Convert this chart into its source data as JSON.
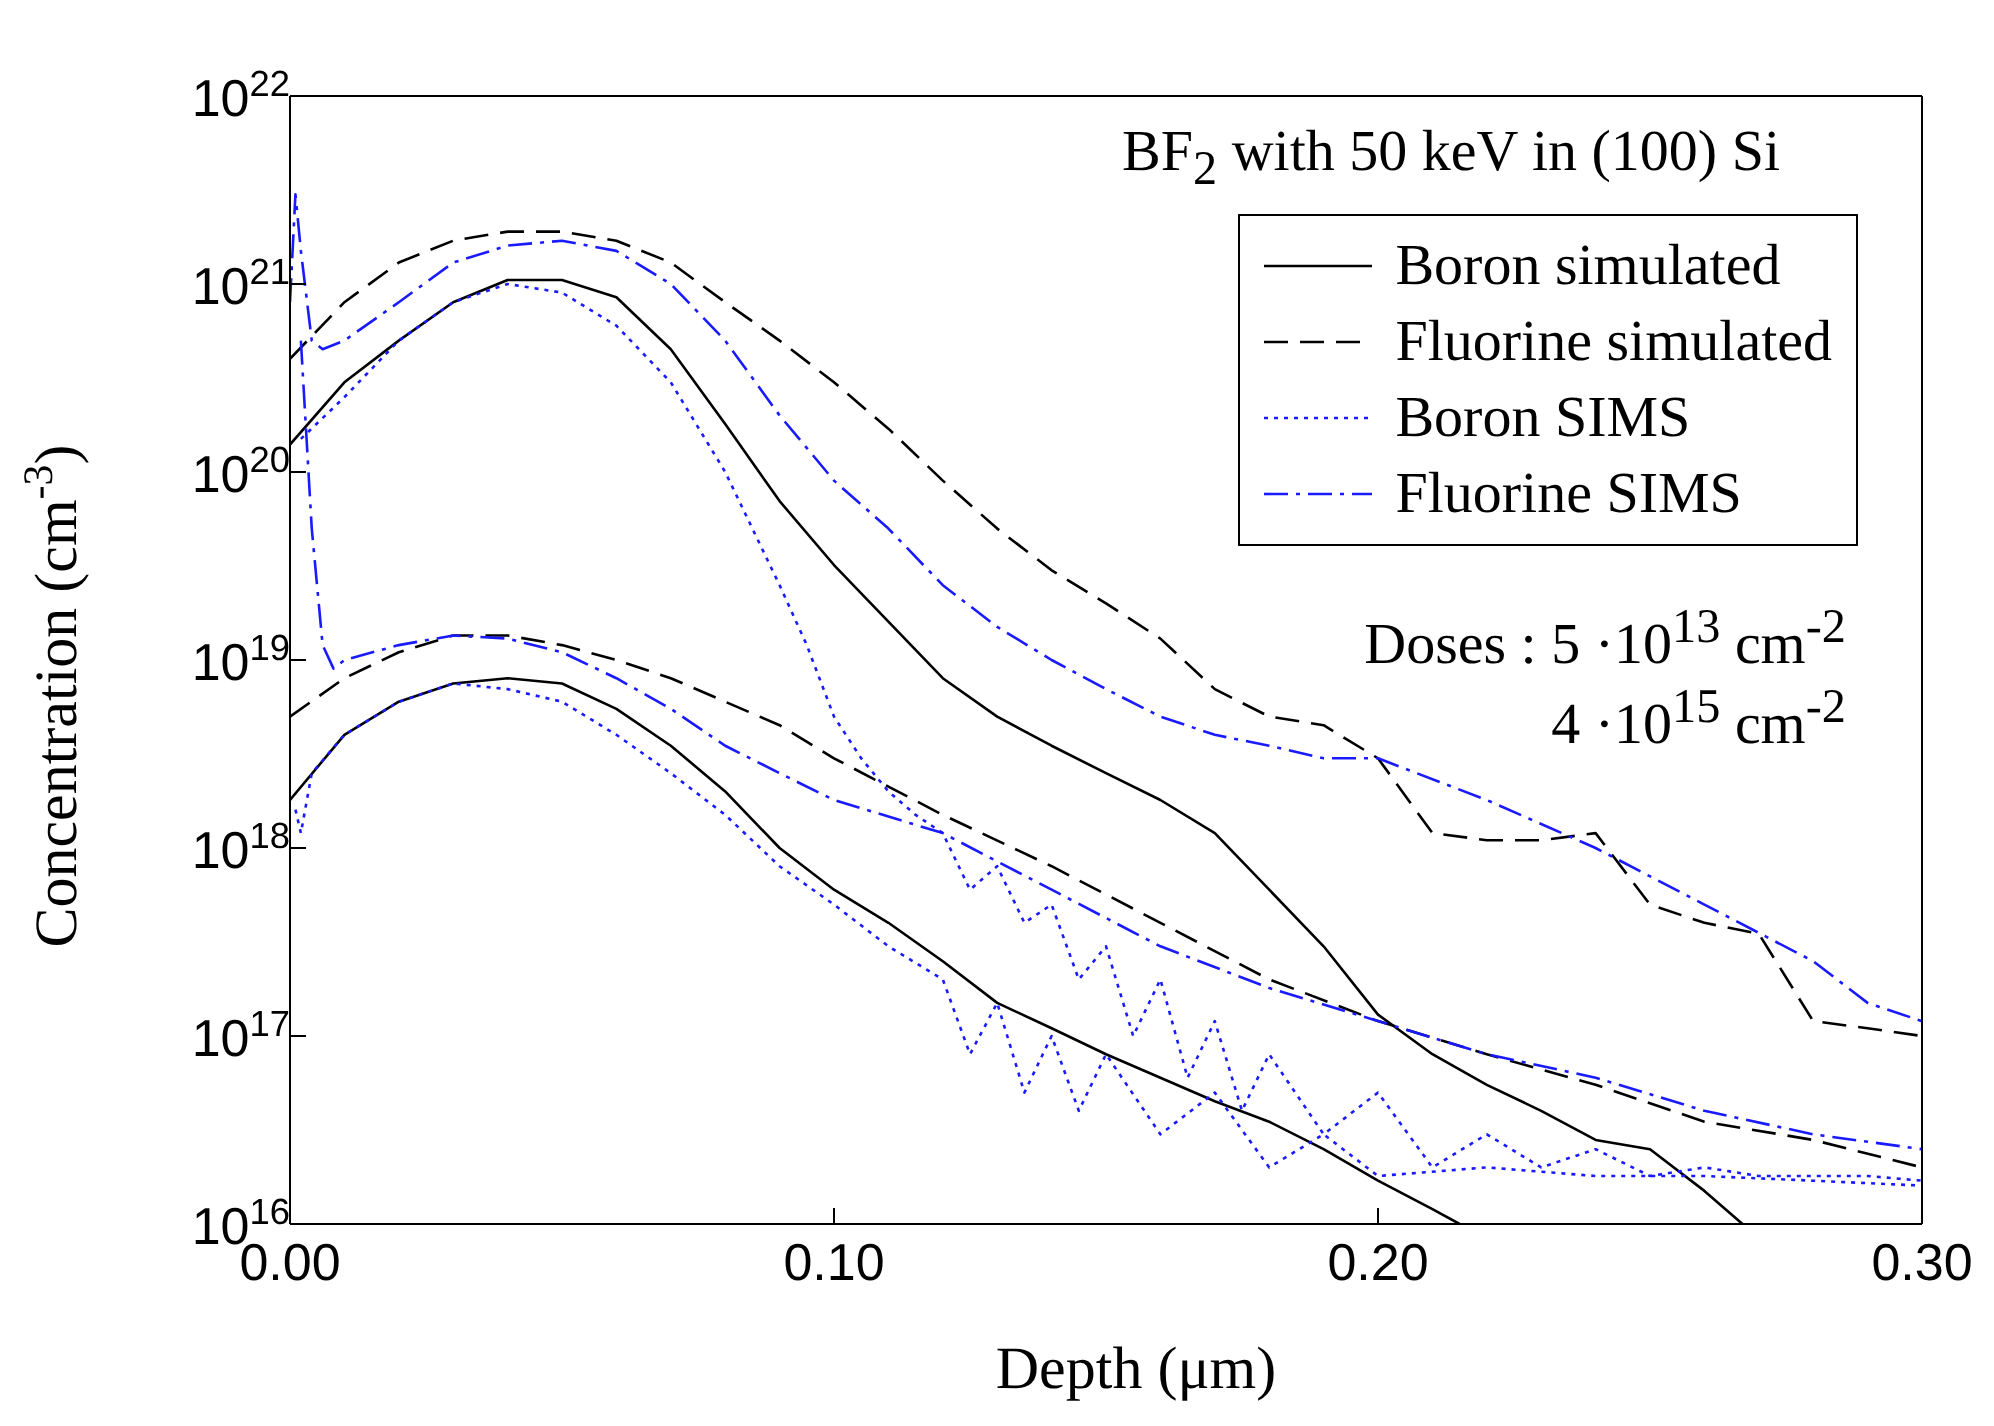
{
  "chart_data": {
    "type": "line",
    "xlabel": "Depth (μm)",
    "ylabel": "Concentration (cm$^{-3}$)",
    "annotations": [
      "BF$_{2}$ with 50 keV in (100) Si",
      "Doses : 5 ·10$^{13}$ cm$^{-2}$",
      "4 ·10$^{15}$ cm$^{-2}$"
    ],
    "log": "y",
    "xlim": [
      0,
      0.3
    ],
    "ylim": [
      1e+16,
      1e+22
    ],
    "xticks": [
      {
        "value": 0,
        "label": "0.00"
      },
      {
        "value": 0.1,
        "label": "0.10"
      },
      {
        "value": 0.2,
        "label": "0.20"
      },
      {
        "value": 0.3,
        "label": "0.30"
      }
    ],
    "yticks": [
      {
        "value": 1e+16,
        "label": "10$^{16}$"
      },
      {
        "value": 1e+17,
        "label": "10$^{17}$"
      },
      {
        "value": 1e+18,
        "label": "10$^{18}$"
      },
      {
        "value": 1e+19,
        "label": "10$^{19}$"
      },
      {
        "value": 1e+20,
        "label": "10$^{20}$"
      },
      {
        "value": 1e+21,
        "label": "10$^{21}$"
      },
      {
        "value": 1e+22,
        "label": "10$^{22}$"
      }
    ],
    "legend": "top right",
    "marker": "none",
    "series": [
      {
        "name": "Boron simulated",
        "color": "#000000",
        "line_style": "solid",
        "x": [
          0,
          0.01,
          0.02,
          0.03,
          0.04,
          0.05,
          0.06,
          0.07,
          0.08,
          0.09,
          0.1,
          0.11,
          0.12,
          0.13,
          0.14,
          0.15,
          0.16,
          0.17,
          0.18,
          0.19,
          0.2,
          0.21,
          0.22,
          0.23,
          0.24,
          0.25,
          0.26,
          0.267
        ],
        "values": [
          1.4e+20,
          3e+20,
          5e+20,
          8e+20,
          1.05e+21,
          1.05e+21,
          8.5e+20,
          4.5e+20,
          1.8e+20,
          7e+19,
          3.2e+19,
          1.6e+19,
          8e+18,
          5e+18,
          3.5e+18,
          2.5e+18,
          1.8e+18,
          1.2e+18,
          6e+17,
          3e+17,
          1.3e+17,
          8e+16,
          5.5e+16,
          4e+16,
          2.8e+16,
          2.5e+16,
          1.5e+16,
          1e+16
        ]
      },
      {
        "name": "Fluorine simulated",
        "color": "#000000",
        "line_style": "dashed",
        "x": [
          0,
          0.01,
          0.02,
          0.03,
          0.04,
          0.05,
          0.06,
          0.07,
          0.08,
          0.09,
          0.1,
          0.11,
          0.12,
          0.13,
          0.14,
          0.15,
          0.16,
          0.17,
          0.18,
          0.19,
          0.2,
          0.21,
          0.22,
          0.23,
          0.24,
          0.25,
          0.26,
          0.27,
          0.28,
          0.29,
          0.3
        ],
        "values": [
          4e+20,
          8e+20,
          1.3e+21,
          1.7e+21,
          1.9e+21,
          1.9e+21,
          1.7e+21,
          1.3e+21,
          8e+20,
          5e+20,
          3e+20,
          1.7e+20,
          9e+19,
          5e+19,
          3e+19,
          2e+19,
          1.3e+19,
          7e+18,
          5e+18,
          4.5e+18,
          3e+18,
          1.2e+18,
          1.1e+18,
          1.1e+18,
          1.2e+18,
          5e+17,
          4e+17,
          3.5e+17,
          1.2e+17,
          1.1e+17,
          1e+17
        ]
      },
      {
        "name": "Boron SIMS",
        "color": "#1a1aff",
        "line_style": "dotted",
        "x": [
          0.002,
          0.01,
          0.02,
          0.03,
          0.04,
          0.05,
          0.06,
          0.07,
          0.08,
          0.09,
          0.095,
          0.1,
          0.105,
          0.11,
          0.115,
          0.12,
          0.125,
          0.13,
          0.135,
          0.14,
          0.145,
          0.15,
          0.155,
          0.16,
          0.165,
          0.17,
          0.175,
          0.18,
          0.19,
          0.2,
          0.21,
          0.22,
          0.23,
          0.24,
          0.25,
          0.26,
          0.27,
          0.28,
          0.29,
          0.3
        ],
        "values": [
          1.5e+20,
          2.5e+20,
          5e+20,
          8e+20,
          1e+21,
          9e+20,
          6e+20,
          3e+20,
          1e+20,
          2.5e+19,
          1.2e+19,
          5e+18,
          3e+18,
          2e+18,
          1.5e+18,
          1.2e+18,
          6e+17,
          8e+17,
          4e+17,
          5e+17,
          2e+17,
          3e+17,
          1e+17,
          2e+17,
          6e+16,
          1.2e+17,
          4e+16,
          8e+16,
          3e+16,
          5e+16,
          2e+16,
          3e+16,
          2e+16,
          2.5e+16,
          1.8e+16,
          2e+16,
          1.8e+16,
          1.8e+16,
          1.8e+16,
          1.7e+16
        ]
      },
      {
        "name": "Fluorine SIMS",
        "color": "#1a1aff",
        "line_style": "dashdot",
        "x": [
          0,
          0.001,
          0.002,
          0.004,
          0.006,
          0.01,
          0.02,
          0.03,
          0.04,
          0.05,
          0.06,
          0.07,
          0.08,
          0.09,
          0.1,
          0.11,
          0.12,
          0.13,
          0.14,
          0.15,
          0.16,
          0.17,
          0.18,
          0.19,
          0.2,
          0.22,
          0.24,
          0.26,
          0.28,
          0.29,
          0.3
        ],
        "values": [
          8e+20,
          3e+21,
          1.5e+21,
          5e+20,
          4.5e+20,
          5e+20,
          8e+20,
          1.3e+21,
          1.6e+21,
          1.7e+21,
          1.5e+21,
          1e+21,
          5e+20,
          2e+20,
          9e+19,
          5e+19,
          2.5e+19,
          1.5e+19,
          1e+19,
          7e+18,
          5e+18,
          4e+18,
          3.5e+18,
          3e+18,
          3e+18,
          1.8e+18,
          1e+18,
          5e+17,
          2.5e+17,
          1.5e+17,
          1.2e+17
        ]
      },
      {
        "color": "#000000",
        "line_style": "solid",
        "x": [
          0,
          0.01,
          0.02,
          0.03,
          0.04,
          0.05,
          0.06,
          0.07,
          0.08,
          0.09,
          0.1,
          0.11,
          0.12,
          0.13,
          0.14,
          0.15,
          0.16,
          0.17,
          0.18,
          0.19,
          0.2,
          0.21,
          0.215
        ],
        "values": [
          1.8e+18,
          4e+18,
          6e+18,
          7.5e+18,
          8e+18,
          7.5e+18,
          5.5e+18,
          3.5e+18,
          2e+18,
          1e+18,
          6e+17,
          4e+17,
          2.5e+17,
          1.5e+17,
          1.1e+17,
          8e+16,
          6e+16,
          4.5e+16,
          3.5e+16,
          2.5e+16,
          1.7e+16,
          1.2e+16,
          1e+16
        ]
      },
      {
        "color": "#000000",
        "line_style": "dashed",
        "x": [
          0,
          0.01,
          0.02,
          0.03,
          0.04,
          0.05,
          0.06,
          0.07,
          0.08,
          0.09,
          0.1,
          0.12,
          0.14,
          0.16,
          0.18,
          0.2,
          0.22,
          0.24,
          0.26,
          0.28,
          0.3
        ],
        "values": [
          5e+18,
          8e+18,
          1.1e+19,
          1.35e+19,
          1.35e+19,
          1.2e+19,
          1e+19,
          8e+18,
          6e+18,
          4.5e+18,
          3e+18,
          1.5e+18,
          8e+17,
          4e+17,
          2e+17,
          1.2e+17,
          8e+16,
          5.5e+16,
          3.5e+16,
          2.8e+16,
          2e+16
        ]
      },
      {
        "color": "#1a1aff",
        "line_style": "dotted",
        "x": [
          0.001,
          0.002,
          0.004,
          0.01,
          0.02,
          0.03,
          0.04,
          0.05,
          0.06,
          0.07,
          0.08,
          0.09,
          0.1,
          0.11,
          0.12,
          0.125,
          0.13,
          0.135,
          0.14,
          0.145,
          0.15,
          0.16,
          0.17,
          0.18,
          0.19,
          0.2,
          0.22,
          0.24,
          0.26,
          0.28,
          0.3
        ],
        "values": [
          1.6e+18,
          1.2e+18,
          2.5e+18,
          4e+18,
          6e+18,
          7.5e+18,
          7e+18,
          6e+18,
          4e+18,
          2.5e+18,
          1.5e+18,
          8e+17,
          5e+17,
          3e+17,
          2e+17,
          8e+16,
          1.5e+17,
          5e+16,
          1e+17,
          4e+16,
          8e+16,
          3e+16,
          5e+16,
          2e+16,
          3e+16,
          1.8e+16,
          2e+16,
          1.8e+16,
          1.8e+16,
          1.7e+16,
          1.6e+16
        ]
      },
      {
        "color": "#1a1aff",
        "line_style": "dashdot",
        "x": [
          0.002,
          0.004,
          0.006,
          0.008,
          0.01,
          0.02,
          0.03,
          0.04,
          0.05,
          0.06,
          0.07,
          0.08,
          0.09,
          0.1,
          0.12,
          0.14,
          0.16,
          0.18,
          0.2,
          0.22,
          0.24,
          0.26,
          0.28,
          0.3
        ],
        "values": [
          5e+20,
          5e+19,
          1.2e+19,
          9e+18,
          1e+19,
          1.2e+19,
          1.35e+19,
          1.3e+19,
          1.1e+19,
          8e+18,
          5.5e+18,
          3.5e+18,
          2.5e+18,
          1.8e+18,
          1.2e+18,
          6e+17,
          3e+17,
          1.8e+17,
          1.2e+17,
          8e+16,
          6e+16,
          4e+16,
          3e+16,
          2.5e+16
        ]
      }
    ]
  }
}
